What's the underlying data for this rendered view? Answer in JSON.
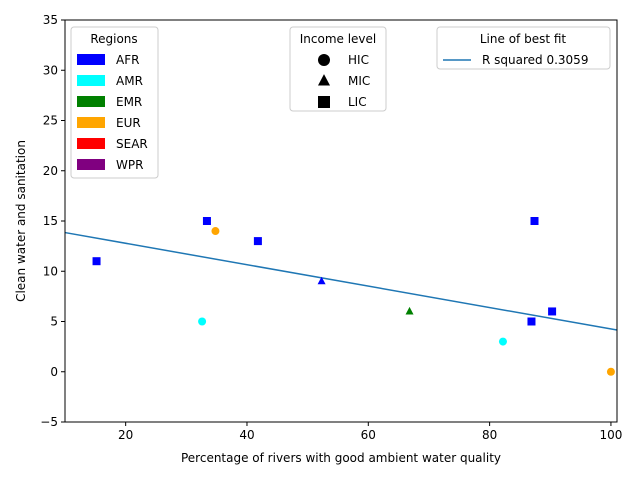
{
  "chart_data": {
    "type": "scatter",
    "xlabel": "Percentage of rivers with good ambient water quality",
    "ylabel": "Clean water and sanitation",
    "xlim": [
      10,
      101
    ],
    "ylim": [
      -5,
      35
    ],
    "xticks": [
      20,
      40,
      60,
      80,
      100
    ],
    "yticks": [
      -5,
      0,
      5,
      10,
      15,
      20,
      25,
      30,
      35
    ],
    "grid": false,
    "region_colors": {
      "AFR": "#0000ff",
      "AMR": "#00ffff",
      "EMR": "#008000",
      "EUR": "#ffa500",
      "SEAR": "#ff0000",
      "WPR": "#800080"
    },
    "income_markers": {
      "HIC": "circle",
      "MIC": "triangle",
      "LIC": "square"
    },
    "points": [
      {
        "x": 15.2,
        "y": 11,
        "region": "AFR",
        "income": "LIC"
      },
      {
        "x": 33.4,
        "y": 15,
        "region": "AFR",
        "income": "LIC"
      },
      {
        "x": 34.8,
        "y": 14,
        "region": "EUR",
        "income": "HIC"
      },
      {
        "x": 32.6,
        "y": 5,
        "region": "AMR",
        "income": "HIC"
      },
      {
        "x": 41.8,
        "y": 13,
        "region": "AFR",
        "income": "LIC"
      },
      {
        "x": 52.3,
        "y": 9,
        "region": "AFR",
        "income": "MIC"
      },
      {
        "x": 66.8,
        "y": 6,
        "region": "EMR",
        "income": "MIC"
      },
      {
        "x": 82.2,
        "y": 3,
        "region": "AMR",
        "income": "HIC"
      },
      {
        "x": 86.9,
        "y": 5,
        "region": "AFR",
        "income": "LIC"
      },
      {
        "x": 87.4,
        "y": 15,
        "region": "AFR",
        "income": "LIC"
      },
      {
        "x": 90.3,
        "y": 6,
        "region": "AFR",
        "income": "LIC"
      },
      {
        "x": 100,
        "y": 0,
        "region": "EUR",
        "income": "HIC"
      }
    ],
    "fit_line": {
      "x": [
        10,
        101
      ],
      "y": [
        13.85,
        4.15
      ],
      "color": "#1f77b4"
    },
    "legends": {
      "regions": {
        "title": "Regions",
        "location": "upper-left",
        "entries": [
          "AFR",
          "AMR",
          "EMR",
          "EUR",
          "SEAR",
          "WPR"
        ]
      },
      "income": {
        "title": "Income level",
        "location": "upper-center",
        "entries": [
          "HIC",
          "MIC",
          "LIC"
        ]
      },
      "fit": {
        "title": "Line of best fit",
        "location": "upper-right",
        "entries": [
          "R squared 0.3059"
        ]
      }
    }
  }
}
